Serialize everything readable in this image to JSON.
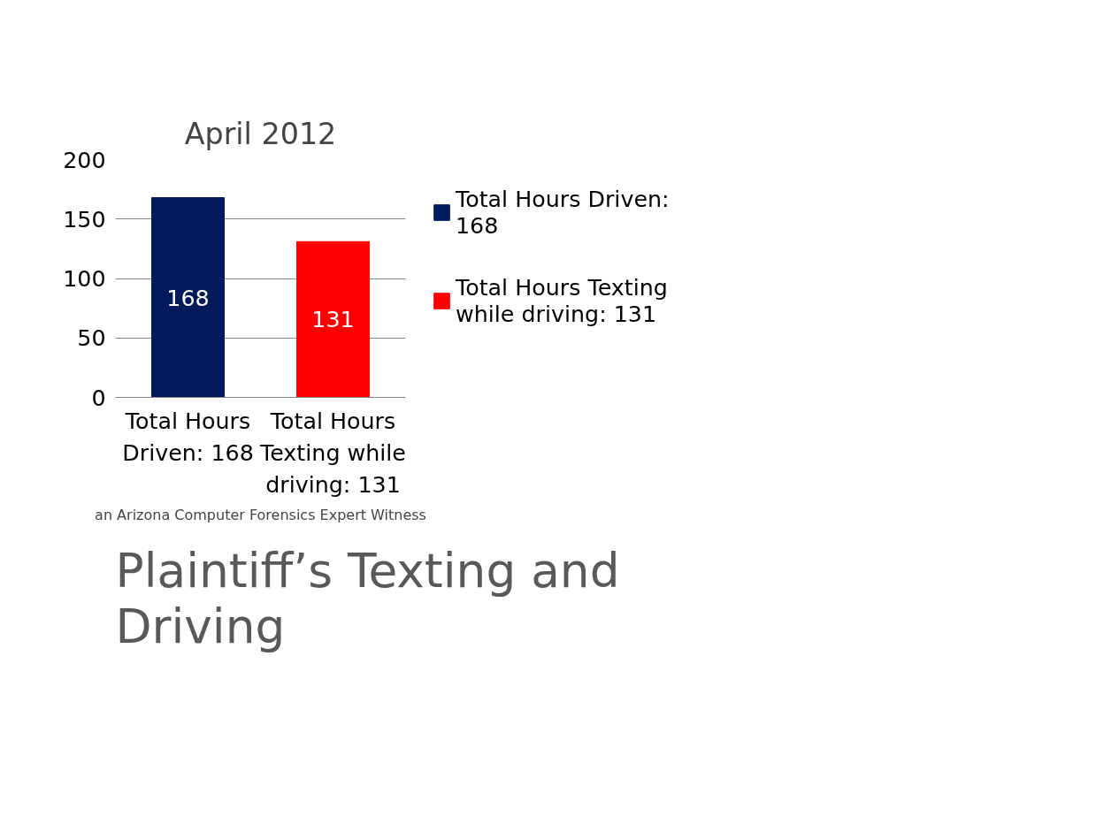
{
  "chart_data": {
    "type": "bar",
    "title": "April 2012",
    "subtitle": "Plaintiff’s Texting and Driving",
    "categories": [
      "Total Hours Driven: 168",
      "Total Hours Texting while driving: 131"
    ],
    "series": [
      {
        "name": "Total Hours Driven: 168",
        "color": "#001a5c",
        "values": [
          168,
          null
        ]
      },
      {
        "name": "Total Hours Texting while driving: 131",
        "color": "#ff0000",
        "values": [
          null,
          131
        ]
      }
    ],
    "ylim": [
      0,
      200
    ],
    "yticks": [
      0,
      50,
      100,
      150,
      200
    ],
    "grid": "y",
    "legend": "right",
    "data_labels": true,
    "annotations": [
      "an Arizona Computer Forensics Expert Witness"
    ]
  }
}
